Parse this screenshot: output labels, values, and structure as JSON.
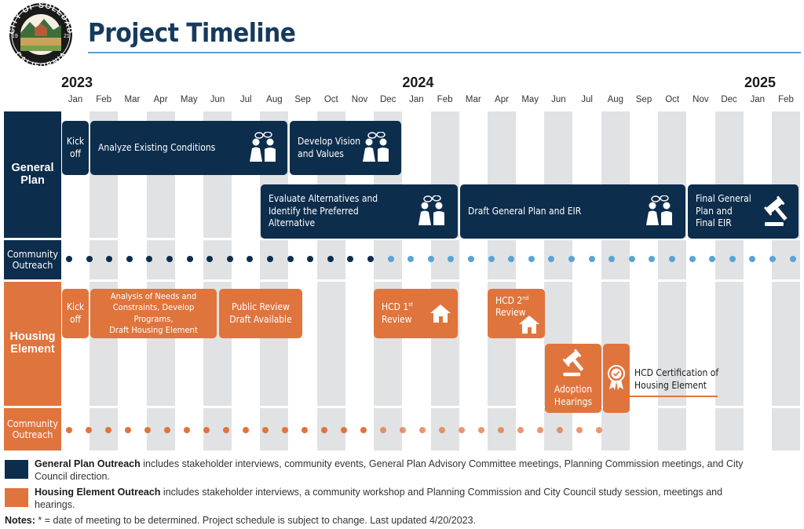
{
  "header": {
    "title": "Project Timeline",
    "logo": {
      "top_text": "CITY OF SOLEDAD",
      "bottom_text": "CALIFORNIA",
      "left_year": "19",
      "right_year": "21",
      "icon": "city-seal"
    }
  },
  "timeline": {
    "years": [
      {
        "label": "2023",
        "first_month_index": 0
      },
      {
        "label": "2024",
        "first_month_index": 12
      },
      {
        "label": "2025",
        "first_month_index": 24
      }
    ],
    "months": [
      "Jan",
      "Feb",
      "Mar",
      "Apr",
      "May",
      "Jun",
      "Jul",
      "Aug",
      "Sep",
      "Oct",
      "Nov",
      "Dec",
      "Jan",
      "Feb",
      "Mar",
      "Apr",
      "May",
      "Jun",
      "Jul",
      "Aug",
      "Sep",
      "Oct",
      "Nov",
      "Dec",
      "Jan",
      "Feb"
    ]
  },
  "rows": {
    "general_plan": "General\nPlan",
    "gp_outreach": "Community\nOutreach",
    "housing_element": "Housing\nElement",
    "he_outreach": "Community\nOutreach"
  },
  "general_plan_tasks": {
    "kickoff": "Kick\noff",
    "existing_conditions": "Analyze Existing Conditions",
    "vision_values": "Develop Vision\nand Values",
    "alternatives": "Evaluate Alternatives and\nIdentify the Preferred\nAlternative",
    "draft_plan": "Draft General Plan and EIR",
    "final_plan": "Final General\nPlan and\nFinal EIR"
  },
  "housing_tasks": {
    "kickoff": "Kick\noff",
    "analysis": "Analysis of Needs and\nConstraints, Develop Programs,\nDraft Housing Element",
    "public_review": "Public Review\nDraft Available",
    "hcd1": "HCD 1",
    "hcd1_sup": "st",
    "hcd2": "HCD 2",
    "hcd2_sup": "nd",
    "review": "Review",
    "adoption": "Adoption\nHearings",
    "certification": "HCD Certification of\nHousing Element"
  },
  "legend": {
    "gp_bold": "General Plan Outreach",
    "gp_text": " includes stakeholder interviews, community events, General Plan Advisory Committee meetings, Planning Commission meetings, and City Council direction.",
    "gp_color": "#0d2d4c",
    "he_bold": "Housing Element Outreach",
    "he_text": " includes stakeholder interviews, a community workshop and Planning Commission and City Council study session, meetings and hearings.",
    "he_color": "#e0743d"
  },
  "notes": {
    "bold": "Notes:",
    "text": " * = date of meeting to be determined. Project schedule is subject to change. Last updated 4/20/2023."
  },
  "colors": {
    "navy": "#0d2d4c",
    "orange": "#e0743d",
    "accent_blue": "#5aa3d6",
    "grid_shade": "#e1e2e4"
  }
}
